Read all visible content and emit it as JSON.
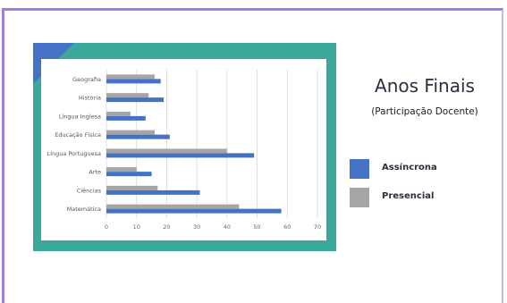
{
  "chart_data": {
    "type": "bar",
    "orientation": "horizontal",
    "categories": [
      "Geografia",
      "História",
      "Língua Inglesa",
      "Educação Física",
      "Língua Portuguesa",
      "Arte",
      "Ciências",
      "Matemática"
    ],
    "series": [
      {
        "name": "Presencial",
        "color": "#a6a6a6",
        "values": [
          16,
          14,
          8,
          16,
          40,
          10,
          17,
          44
        ]
      },
      {
        "name": "Assíncrona",
        "color": "#4472c4",
        "values": [
          18,
          19,
          13,
          21,
          49,
          15,
          31,
          58
        ]
      }
    ],
    "xticks": [
      "0",
      "10",
      "20",
      "30",
      "40",
      "50",
      "60",
      "70"
    ],
    "xlim": [
      0,
      70
    ],
    "grid": true,
    "title": "Anos Finais",
    "subtitle": "(Participação Docente)",
    "legend_position": "right"
  },
  "colors": {
    "teal": "#3aa89b",
    "accent": "#4472c4",
    "frame": "#a37be3"
  }
}
